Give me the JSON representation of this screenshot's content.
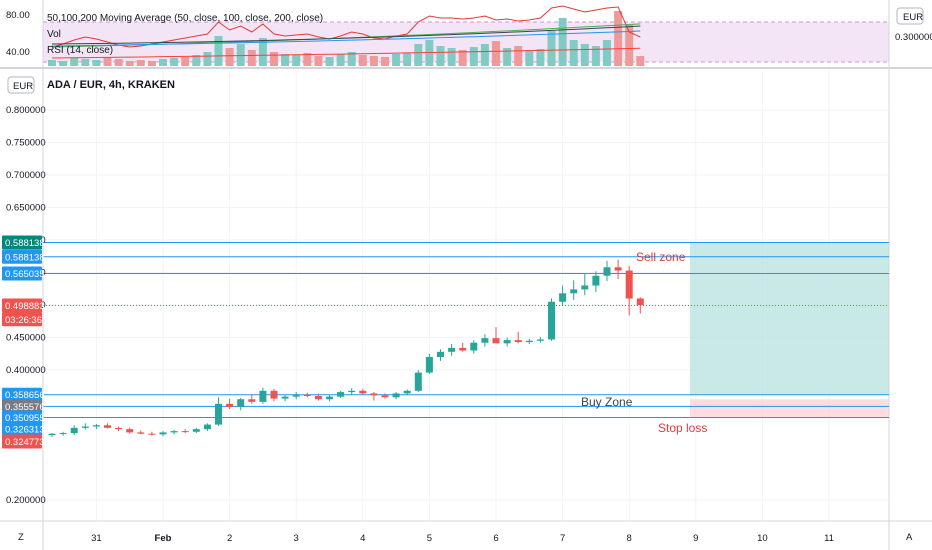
{
  "upper_pane": {
    "legend": [
      "50,100,200 Moving Average (50, close, 100, close, 200, close)",
      "Vol",
      "RSI (14, close)"
    ],
    "y_ticks": [
      {
        "label": "80.00",
        "value": 80
      },
      {
        "label": "40.00",
        "value": 40
      }
    ],
    "right_currency": "EUR",
    "right_tick": "0.300000",
    "rsi_band_color": "#9c27b0",
    "rsi_band_range": [
      30,
      70
    ]
  },
  "main_pane": {
    "symbol_title": "ADA / EUR, 4h, KRAKEN",
    "left_currency": "EUR",
    "right_corner_button": "A",
    "left_corner_button": "Z",
    "colors": {
      "up": "#26a69a",
      "down": "#ef5350",
      "line": "#2196f3",
      "sell_zone": "#b2dfdb",
      "stop_zone": "#ffcdd2"
    }
  },
  "annotations": {
    "sell_zone": "Sell zone",
    "buy_zone": "Buy Zone",
    "stop_loss": "Stop loss"
  },
  "price_tags": [
    {
      "label": "0.588138",
      "value": 0.5962,
      "color": "#00897b"
    },
    {
      "label": "0.588138",
      "value": 0.5742,
      "color": "#2196f3"
    },
    {
      "label": "0.565035",
      "value": 0.5485,
      "color": "#2196f3"
    },
    {
      "label": "0.498883",
      "value": 0.4992,
      "color": "#ef5350"
    },
    {
      "label": "03:26:36",
      "value": 0.478,
      "color": "#ef5350"
    },
    {
      "label": "0.358656",
      "value": 0.362,
      "color": "#2196f3"
    },
    {
      "label": "0.355576",
      "value": 0.344,
      "color": "#787b86"
    },
    {
      "label": "0.350955",
      "value": 0.327,
      "color": "#2196f3"
    },
    {
      "label": "0.326313",
      "value": 0.3095,
      "color": "#2196f3"
    },
    {
      "label": "0.324773",
      "value": 0.29,
      "color": "#ef5350"
    }
  ],
  "chart_data": {
    "type": "candlestick",
    "title": "ADA / EUR, 4h, KRAKEN",
    "y_axis": {
      "ticks": [
        0.2,
        0.4,
        0.45,
        0.5,
        0.55,
        0.6,
        0.65,
        0.7,
        0.75,
        0.8
      ],
      "tick_labels": [
        "0.200000",
        "0.400000",
        "0.450000",
        "0.500000",
        "0.550000",
        "0.600000",
        "0.650000",
        "0.700000",
        "0.750000",
        "0.800000"
      ]
    },
    "x_axis": {
      "ticks": [
        {
          "label": "31",
          "bar": 4
        },
        {
          "label": "Feb",
          "bar": 10
        },
        {
          "label": "2",
          "bar": 16
        },
        {
          "label": "3",
          "bar": 22
        },
        {
          "label": "4",
          "bar": 28
        },
        {
          "label": "5",
          "bar": 34
        },
        {
          "label": "6",
          "bar": 40
        },
        {
          "label": "7",
          "bar": 46
        },
        {
          "label": "8",
          "bar": 52
        },
        {
          "label": "9",
          "bar": 58
        },
        {
          "label": "10",
          "bar": 64
        },
        {
          "label": "11",
          "bar": 70
        }
      ]
    },
    "candles": [
      {
        "o": 0.3,
        "h": 0.303,
        "l": 0.297,
        "c": 0.302
      },
      {
        "o": 0.302,
        "h": 0.305,
        "l": 0.299,
        "c": 0.303
      },
      {
        "o": 0.303,
        "h": 0.315,
        "l": 0.3,
        "c": 0.311
      },
      {
        "o": 0.311,
        "h": 0.318,
        "l": 0.308,
        "c": 0.313
      },
      {
        "o": 0.313,
        "h": 0.317,
        "l": 0.309,
        "c": 0.315
      },
      {
        "o": 0.315,
        "h": 0.318,
        "l": 0.31,
        "c": 0.311
      },
      {
        "o": 0.311,
        "h": 0.313,
        "l": 0.306,
        "c": 0.309
      },
      {
        "o": 0.309,
        "h": 0.311,
        "l": 0.302,
        "c": 0.304
      },
      {
        "o": 0.304,
        "h": 0.307,
        "l": 0.301,
        "c": 0.302
      },
      {
        "o": 0.302,
        "h": 0.305,
        "l": 0.299,
        "c": 0.301
      },
      {
        "o": 0.301,
        "h": 0.306,
        "l": 0.298,
        "c": 0.304
      },
      {
        "o": 0.304,
        "h": 0.308,
        "l": 0.301,
        "c": 0.306
      },
      {
        "o": 0.306,
        "h": 0.309,
        "l": 0.303,
        "c": 0.305
      },
      {
        "o": 0.305,
        "h": 0.311,
        "l": 0.303,
        "c": 0.309
      },
      {
        "o": 0.309,
        "h": 0.318,
        "l": 0.306,
        "c": 0.316
      },
      {
        "o": 0.316,
        "h": 0.358,
        "l": 0.314,
        "c": 0.348
      },
      {
        "o": 0.348,
        "h": 0.356,
        "l": 0.34,
        "c": 0.343
      },
      {
        "o": 0.343,
        "h": 0.357,
        "l": 0.338,
        "c": 0.355
      },
      {
        "o": 0.355,
        "h": 0.363,
        "l": 0.348,
        "c": 0.351
      },
      {
        "o": 0.351,
        "h": 0.373,
        "l": 0.348,
        "c": 0.368
      },
      {
        "o": 0.368,
        "h": 0.371,
        "l": 0.352,
        "c": 0.356
      },
      {
        "o": 0.356,
        "h": 0.362,
        "l": 0.352,
        "c": 0.359
      },
      {
        "o": 0.359,
        "h": 0.366,
        "l": 0.355,
        "c": 0.362
      },
      {
        "o": 0.362,
        "h": 0.365,
        "l": 0.358,
        "c": 0.36
      },
      {
        "o": 0.36,
        "h": 0.364,
        "l": 0.353,
        "c": 0.355
      },
      {
        "o": 0.355,
        "h": 0.362,
        "l": 0.352,
        "c": 0.359
      },
      {
        "o": 0.359,
        "h": 0.368,
        "l": 0.357,
        "c": 0.366
      },
      {
        "o": 0.366,
        "h": 0.372,
        "l": 0.362,
        "c": 0.368
      },
      {
        "o": 0.368,
        "h": 0.371,
        "l": 0.362,
        "c": 0.364
      },
      {
        "o": 0.364,
        "h": 0.366,
        "l": 0.353,
        "c": 0.361
      },
      {
        "o": 0.361,
        "h": 0.364,
        "l": 0.356,
        "c": 0.358
      },
      {
        "o": 0.358,
        "h": 0.366,
        "l": 0.355,
        "c": 0.364
      },
      {
        "o": 0.364,
        "h": 0.37,
        "l": 0.361,
        "c": 0.368
      },
      {
        "o": 0.368,
        "h": 0.4,
        "l": 0.366,
        "c": 0.396
      },
      {
        "o": 0.396,
        "h": 0.425,
        "l": 0.394,
        "c": 0.42
      },
      {
        "o": 0.42,
        "h": 0.432,
        "l": 0.414,
        "c": 0.428
      },
      {
        "o": 0.428,
        "h": 0.44,
        "l": 0.422,
        "c": 0.434
      },
      {
        "o": 0.434,
        "h": 0.442,
        "l": 0.428,
        "c": 0.43
      },
      {
        "o": 0.43,
        "h": 0.446,
        "l": 0.425,
        "c": 0.442
      },
      {
        "o": 0.442,
        "h": 0.455,
        "l": 0.436,
        "c": 0.449
      },
      {
        "o": 0.449,
        "h": 0.466,
        "l": 0.443,
        "c": 0.441
      },
      {
        "o": 0.441,
        "h": 0.45,
        "l": 0.436,
        "c": 0.446
      },
      {
        "o": 0.446,
        "h": 0.459,
        "l": 0.441,
        "c": 0.443
      },
      {
        "o": 0.443,
        "h": 0.448,
        "l": 0.44,
        "c": 0.445
      },
      {
        "o": 0.445,
        "h": 0.451,
        "l": 0.442,
        "c": 0.447
      },
      {
        "o": 0.447,
        "h": 0.51,
        "l": 0.445,
        "c": 0.505
      },
      {
        "o": 0.505,
        "h": 0.53,
        "l": 0.5,
        "c": 0.518
      },
      {
        "o": 0.518,
        "h": 0.538,
        "l": 0.508,
        "c": 0.524
      },
      {
        "o": 0.524,
        "h": 0.548,
        "l": 0.515,
        "c": 0.53
      },
      {
        "o": 0.53,
        "h": 0.552,
        "l": 0.52,
        "c": 0.545
      },
      {
        "o": 0.545,
        "h": 0.568,
        "l": 0.537,
        "c": 0.558
      },
      {
        "o": 0.558,
        "h": 0.57,
        "l": 0.54,
        "c": 0.553
      },
      {
        "o": 0.553,
        "h": 0.56,
        "l": 0.484,
        "c": 0.51
      },
      {
        "o": 0.51,
        "h": 0.512,
        "l": 0.487,
        "c": 0.5
      }
    ],
    "horizontal_levels": [
      0.5742,
      0.5485,
      0.362,
      0.344,
      0.327,
      0.5962
    ],
    "zones": [
      {
        "name": "Sell zone",
        "from": 0.362,
        "to": 0.5962,
        "color": "#b2dfdb"
      },
      {
        "name": "Stop loss",
        "from": 0.327,
        "to": 0.355,
        "color": "#ffcdd2"
      }
    ]
  }
}
